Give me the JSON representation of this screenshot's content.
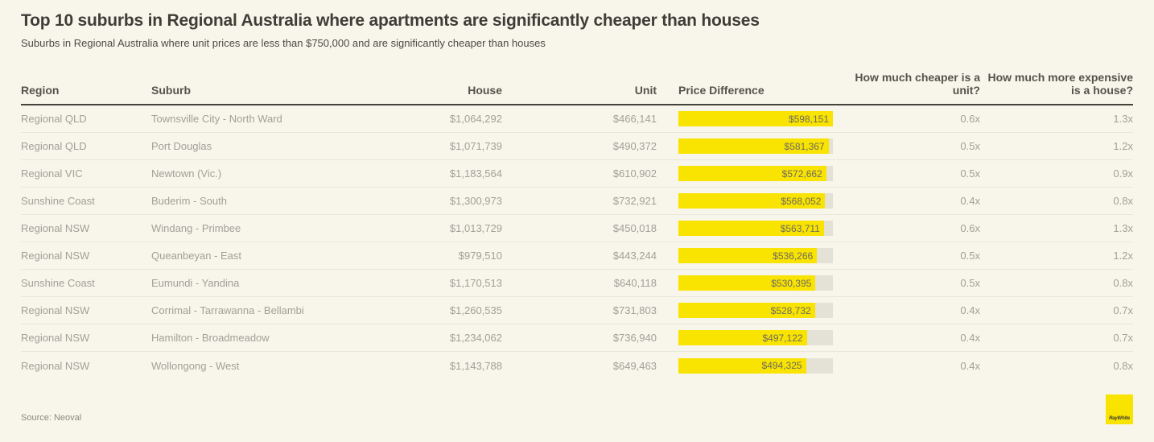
{
  "chart_data": {
    "type": "table",
    "title": "Top 10 suburbs in Regional Australia where apartments are significantly cheaper than houses",
    "subtitle": "Suburbs in Regional Australia where unit prices are less than $750,000 and are significantly cheaper than houses",
    "source": "Source: Neoval",
    "columns": [
      "Region",
      "Suburb",
      "House",
      "Unit",
      "Price Difference",
      "How much cheaper is a unit?",
      "How much more expensive is a house?"
    ],
    "bar_column": "Price Difference",
    "bar_color": "#f9e300",
    "bar_track_color": "#e4e1d6",
    "rows": [
      {
        "region": "Regional QLD",
        "suburb": "Townsville City - North Ward",
        "house": "$1,064,292",
        "unit": "$466,141",
        "price_difference": "$598,151",
        "price_difference_value": 598151,
        "cheaper": "0.6x",
        "expensive": "1.3x"
      },
      {
        "region": "Regional QLD",
        "suburb": "Port Douglas",
        "house": "$1,071,739",
        "unit": "$490,372",
        "price_difference": "$581,367",
        "price_difference_value": 581367,
        "cheaper": "0.5x",
        "expensive": "1.2x"
      },
      {
        "region": "Regional VIC",
        "suburb": "Newtown (Vic.)",
        "house": "$1,183,564",
        "unit": "$610,902",
        "price_difference": "$572,662",
        "price_difference_value": 572662,
        "cheaper": "0.5x",
        "expensive": "0.9x"
      },
      {
        "region": "Sunshine Coast",
        "suburb": "Buderim - South",
        "house": "$1,300,973",
        "unit": "$732,921",
        "price_difference": "$568,052",
        "price_difference_value": 568052,
        "cheaper": "0.4x",
        "expensive": "0.8x"
      },
      {
        "region": "Regional NSW",
        "suburb": "Windang - Primbee",
        "house": "$1,013,729",
        "unit": "$450,018",
        "price_difference": "$563,711",
        "price_difference_value": 563711,
        "cheaper": "0.6x",
        "expensive": "1.3x"
      },
      {
        "region": "Regional NSW",
        "suburb": "Queanbeyan - East",
        "house": "$979,510",
        "unit": "$443,244",
        "price_difference": "$536,266",
        "price_difference_value": 536266,
        "cheaper": "0.5x",
        "expensive": "1.2x"
      },
      {
        "region": "Sunshine Coast",
        "suburb": "Eumundi - Yandina",
        "house": "$1,170,513",
        "unit": "$640,118",
        "price_difference": "$530,395",
        "price_difference_value": 530395,
        "cheaper": "0.5x",
        "expensive": "0.8x"
      },
      {
        "region": "Regional NSW",
        "suburb": "Corrimal - Tarrawanna - Bellambi",
        "house": "$1,260,535",
        "unit": "$731,803",
        "price_difference": "$528,732",
        "price_difference_value": 528732,
        "cheaper": "0.4x",
        "expensive": "0.7x"
      },
      {
        "region": "Regional NSW",
        "suburb": "Hamilton - Broadmeadow",
        "house": "$1,234,062",
        "unit": "$736,940",
        "price_difference": "$497,122",
        "price_difference_value": 497122,
        "cheaper": "0.4x",
        "expensive": "0.7x"
      },
      {
        "region": "Regional NSW",
        "suburb": "Wollongong - West",
        "house": "$1,143,788",
        "unit": "$649,463",
        "price_difference": "$494,325",
        "price_difference_value": 494325,
        "cheaper": "0.4x",
        "expensive": "0.8x"
      }
    ]
  },
  "logo": {
    "text": "RayWhite",
    "color": "#f9e300"
  }
}
